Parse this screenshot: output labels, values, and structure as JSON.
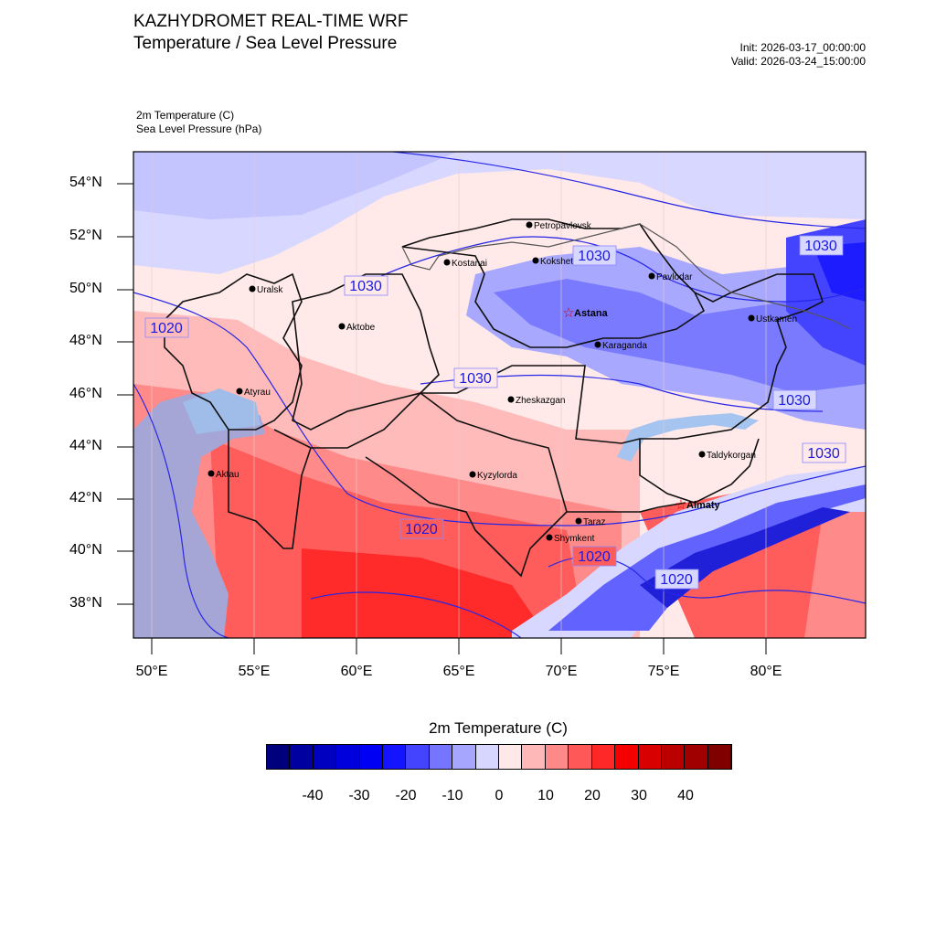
{
  "header": {
    "title_line1": "KAZHYDROMET REAL-TIME WRF",
    "title_line2": "Temperature / Sea Level Pressure",
    "init": "Init: 2026-03-17_00:00:00",
    "valid": "Valid: 2026-03-24_15:00:00"
  },
  "layers": {
    "temp_label": "2m Temperature   (C)",
    "slp_label": "Sea Level Pressure   (hPa)"
  },
  "map": {
    "lat_ticks": [
      "54°N",
      "52°N",
      "50°N",
      "48°N",
      "46°N",
      "44°N",
      "42°N",
      "40°N",
      "38°N"
    ],
    "lon_ticks": [
      "50°E",
      "55°E",
      "60°E",
      "65°E",
      "70°E",
      "75°E",
      "80°E"
    ],
    "cities": [
      {
        "name": "Uralsk",
        "capital": false
      },
      {
        "name": "Aktobe",
        "capital": false
      },
      {
        "name": "Atyrau",
        "capital": false
      },
      {
        "name": "Aktau",
        "capital": false
      },
      {
        "name": "Kostanai",
        "capital": false
      },
      {
        "name": "Petropavlovsk",
        "capital": false
      },
      {
        "name": "Kokshetau",
        "capital": false
      },
      {
        "name": "Pavlodar",
        "capital": false
      },
      {
        "name": "Astana",
        "capital": true
      },
      {
        "name": "Karaganda",
        "capital": false
      },
      {
        "name": "Ustkamen",
        "capital": false
      },
      {
        "name": "Zheskazgan",
        "capital": false
      },
      {
        "name": "Kyzylorda",
        "capital": false
      },
      {
        "name": "Taldykorgan",
        "capital": false
      },
      {
        "name": "Almaty",
        "capital": true
      },
      {
        "name": "Taraz",
        "capital": false
      },
      {
        "name": "Shymkent",
        "capital": false
      }
    ],
    "isobar_labels": [
      "1030",
      "1030",
      "1030",
      "1030",
      "1030",
      "1030",
      "1020",
      "1020",
      "1020",
      "1020"
    ]
  },
  "colorbar": {
    "title": "2m Temperature  (C)",
    "ticks": [
      "-40",
      "-30",
      "-20",
      "-10",
      "0",
      "10",
      "20",
      "30",
      "40"
    ],
    "colors": [
      "#00007f",
      "#0000a0",
      "#0000c0",
      "#0000dc",
      "#0000f5",
      "#1414ff",
      "#4444ff",
      "#7575ff",
      "#a6a6ff",
      "#d6d6ff",
      "#ffe8e8",
      "#ffb8b8",
      "#ff8888",
      "#ff5858",
      "#ff2828",
      "#f50000",
      "#d80000",
      "#bb0000",
      "#a00000",
      "#800000"
    ]
  }
}
